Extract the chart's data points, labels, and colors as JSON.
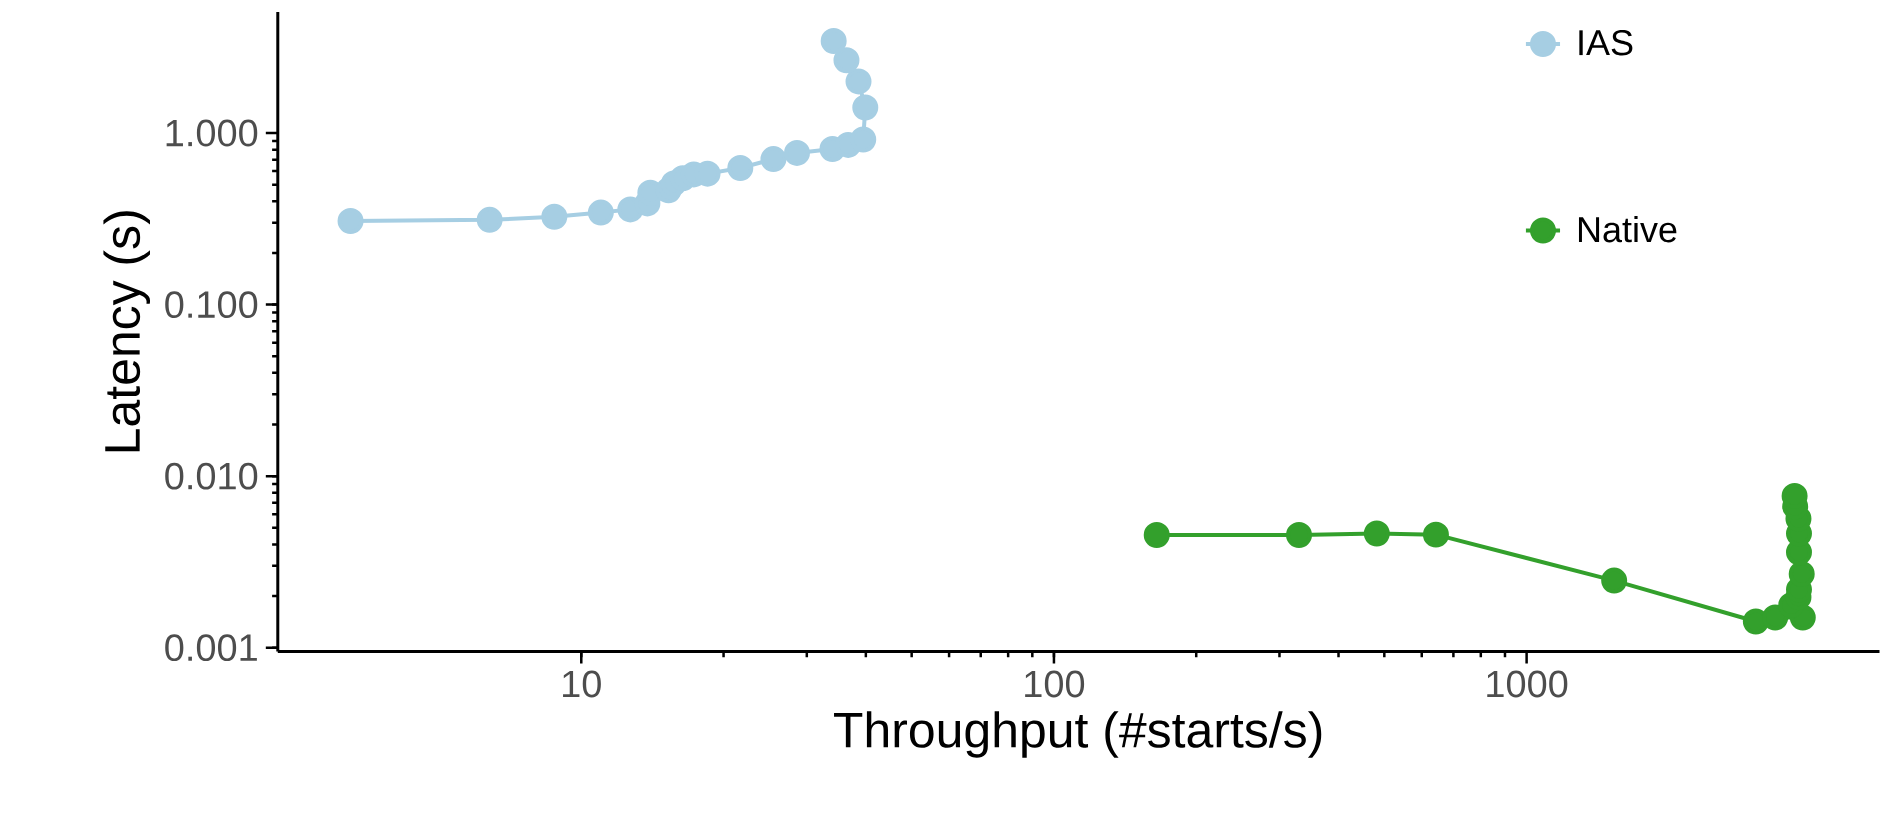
{
  "chart_data": {
    "type": "line",
    "xlabel": "Throughput (#starts/s)",
    "ylabel": "Latency (s)",
    "series": [
      {
        "name": "IAS",
        "color": "#a6cee3",
        "x": [
          3.25,
          6.4,
          8.77,
          11.0,
          12.7,
          13.8,
          14.0,
          15.3,
          15.7,
          16.4,
          17.3,
          18.5,
          21.7,
          25.5,
          28.6,
          34.0,
          36.7,
          39.5,
          39.9,
          38.6,
          36.4,
          34.2
        ],
        "values": [
          0.307,
          0.312,
          0.325,
          0.344,
          0.359,
          0.389,
          0.449,
          0.464,
          0.509,
          0.545,
          0.574,
          0.58,
          0.626,
          0.705,
          0.766,
          0.807,
          0.853,
          0.918,
          1.41,
          2.0,
          2.66,
          3.44
        ]
      },
      {
        "name": "Native",
        "color": "#33a02c",
        "x": [
          165,
          330,
          482,
          643,
          1532,
          3055,
          3357,
          3840,
          3630,
          3760,
          3770,
          3820,
          3770,
          3770,
          3760,
          3700,
          3690
        ],
        "values": [
          0.00454,
          0.00454,
          0.00463,
          0.00456,
          0.00246,
          0.00142,
          0.0015,
          0.0015,
          0.00177,
          0.00197,
          0.00218,
          0.00269,
          0.0036,
          0.00463,
          0.00565,
          0.00664,
          0.00767
        ]
      }
    ],
    "log": "xy",
    "xlim": [
      2.28,
      5580
    ],
    "ylim": [
      0.00095,
      5.08
    ],
    "xticks": [
      10,
      100,
      1000
    ],
    "yticks": [
      0.001,
      {
        "value": 0.01,
        "label": "0.010"
      },
      {
        "value": 0.1,
        "label": "0.100"
      },
      {
        "value": 1,
        "label": "1.000"
      }
    ],
    "legend": "top right",
    "marker": "circle"
  }
}
